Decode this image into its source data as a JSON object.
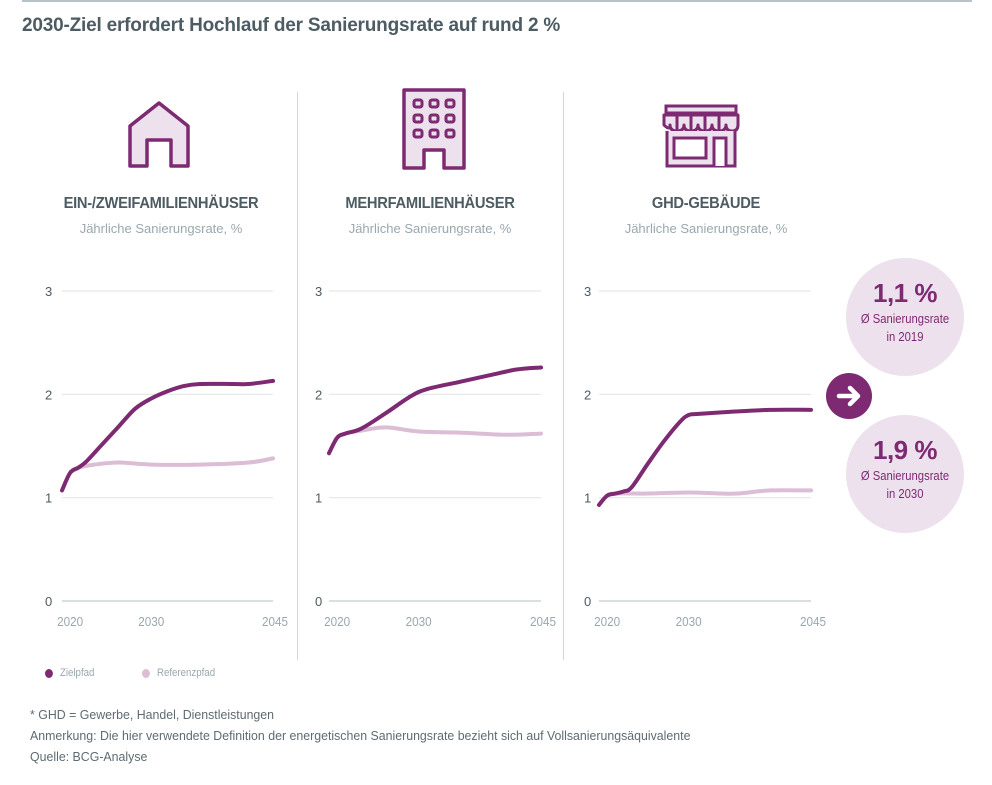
{
  "title": "2030-Ziel erfordert Hochlauf der Sanierungsrate auf rund 2 %",
  "colors": {
    "accent": "#7e2a72",
    "reference": "#dbbdd6",
    "bubble_bg": "#ece1ec",
    "grid": "#e3e7ea"
  },
  "panels": [
    {
      "icon": "house-icon",
      "title": "EIN-/ZWEIFAMILIENHÄUSER",
      "subtitle": "Jährliche Sanierungsrate, %"
    },
    {
      "icon": "apartment-building-icon",
      "title": "MEHRFAMILIENHÄUSER",
      "subtitle": "Jährliche Sanierungsrate, %"
    },
    {
      "icon": "storefront-icon",
      "title": "GHD-GEBÄUDE",
      "subtitle": "Jährliche Sanierungsrate, %"
    }
  ],
  "bubbles": [
    {
      "value": "1,1 %",
      "label_line1": "Ø Sanierungsrate",
      "label_line2": "in 2019"
    },
    {
      "value": "1,9 %",
      "label_line1": "Ø Sanierungsrate",
      "label_line2": "in 2030"
    }
  ],
  "arrow_icon": "arrow-right-icon",
  "legend": [
    {
      "label": "Zielpfad",
      "color": "#7e2a72"
    },
    {
      "label": "Referenzpfad",
      "color": "#dbbdd6"
    }
  ],
  "notes": [
    "* GHD = Gewerbe, Handel, Dienstleistungen",
    "Anmerkung: Die hier verwendete Definition der energetischen Sanierungsrate bezieht sich auf Vollsanierungsäquivalente",
    "Quelle: BCG-Analyse"
  ],
  "chart_data": [
    {
      "type": "line",
      "title": "EIN-/ZWEIFAMILIENHÄUSER",
      "ylabel": "Jährliche Sanierungsrate, %",
      "ylim": [
        0,
        3
      ],
      "yticks": [
        "0",
        "1",
        "2",
        "3"
      ],
      "xlim": [
        2019,
        2045
      ],
      "xticks": [
        "2020",
        "2030",
        "2045"
      ],
      "grid": true,
      "series": [
        {
          "name": "Zielpfad",
          "x": [
            2019,
            2020,
            2021,
            2022,
            2024,
            2026,
            2028,
            2030,
            2032,
            2034,
            2036,
            2040,
            2042,
            2045
          ],
          "values": [
            1.07,
            1.24,
            1.29,
            1.35,
            1.52,
            1.69,
            1.86,
            1.96,
            2.03,
            2.08,
            2.1,
            2.1,
            2.1,
            2.13
          ]
        },
        {
          "name": "Referenzpfad",
          "x": [
            2019,
            2020,
            2021,
            2023,
            2026,
            2030,
            2036,
            2042,
            2045
          ],
          "values": [
            1.07,
            1.24,
            1.29,
            1.32,
            1.34,
            1.32,
            1.32,
            1.34,
            1.38
          ]
        }
      ]
    },
    {
      "type": "line",
      "title": "MEHRFAMILIENHÄUSER",
      "ylabel": "Jährliche Sanierungsrate, %",
      "ylim": [
        0,
        3
      ],
      "yticks": [
        "0",
        "1",
        "2",
        "3"
      ],
      "xlim": [
        2019,
        2045
      ],
      "xticks": [
        "2020",
        "2030",
        "2045"
      ],
      "grid": true,
      "series": [
        {
          "name": "Zielpfad",
          "x": [
            2019,
            2020,
            2021,
            2023,
            2026,
            2029,
            2031,
            2035,
            2039,
            2042,
            2045
          ],
          "values": [
            1.43,
            1.58,
            1.62,
            1.67,
            1.82,
            1.98,
            2.05,
            2.12,
            2.19,
            2.24,
            2.26
          ]
        },
        {
          "name": "Referenzpfad",
          "x": [
            2019,
            2020,
            2021,
            2023,
            2026,
            2030,
            2035,
            2040,
            2042,
            2045
          ],
          "values": [
            1.43,
            1.58,
            1.62,
            1.65,
            1.68,
            1.64,
            1.63,
            1.61,
            1.61,
            1.62
          ]
        }
      ]
    },
    {
      "type": "line",
      "title": "GHD-GEBÄUDE",
      "ylabel": "Jährliche Sanierungsrate, %",
      "ylim": [
        0,
        3
      ],
      "yticks": [
        "0",
        "1",
        "2",
        "3"
      ],
      "xlim": [
        2019,
        2045
      ],
      "xticks": [
        "2020",
        "2030",
        "2045"
      ],
      "grid": true,
      "series": [
        {
          "name": "Zielpfad",
          "x": [
            2019,
            2020,
            2021,
            2022,
            2023,
            2025,
            2027,
            2029,
            2030,
            2031,
            2035,
            2040,
            2045
          ],
          "values": [
            0.93,
            1.02,
            1.04,
            1.06,
            1.1,
            1.33,
            1.55,
            1.74,
            1.8,
            1.81,
            1.83,
            1.85,
            1.85
          ]
        },
        {
          "name": "Referenzpfad",
          "x": [
            2019,
            2020,
            2021,
            2025,
            2030,
            2034,
            2036,
            2040,
            2045
          ],
          "values": [
            0.93,
            1.02,
            1.04,
            1.04,
            1.05,
            1.04,
            1.04,
            1.07,
            1.07
          ]
        }
      ]
    }
  ]
}
